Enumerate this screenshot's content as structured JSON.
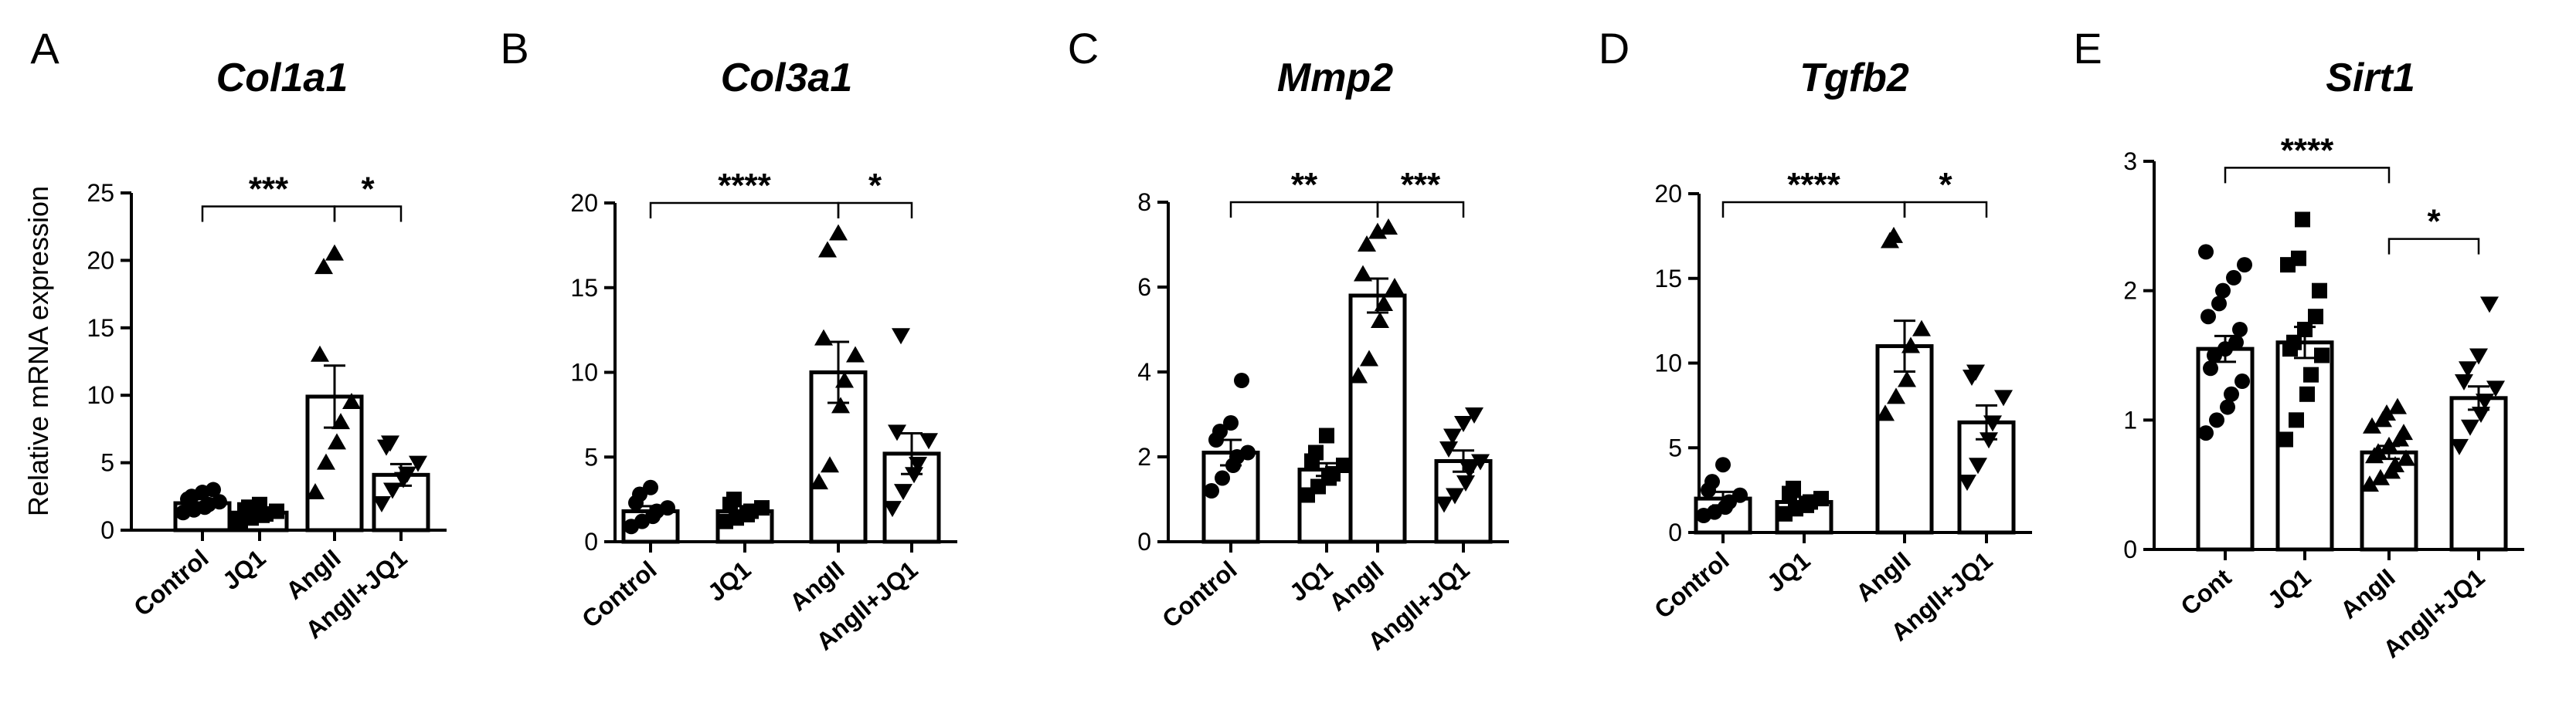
{
  "figure": {
    "ylabel": "Relative mRNA   expression",
    "chart_data": [
      {
        "panel": "A",
        "type": "bar",
        "title": "Col1a1",
        "categories": [
          "Control",
          "JQ1",
          "AngII",
          "AngII+JQ1"
        ],
        "ylim": [
          0,
          25
        ],
        "yticks": [
          0,
          5,
          10,
          15,
          20,
          25
        ],
        "values": [
          2.0,
          1.3,
          9.9,
          4.1
        ],
        "sem": [
          0.3,
          0.3,
          2.3,
          0.8
        ],
        "markers": [
          "circle",
          "square",
          "triangle-up",
          "triangle-down"
        ],
        "points": [
          [
            1.3,
            1.5,
            1.7,
            1.9,
            2.1,
            2.3,
            2.5,
            2.8,
            3.0
          ],
          [
            0.7,
            0.9,
            1.1,
            1.2,
            1.4,
            1.5,
            1.7,
            1.9
          ],
          [
            2.8,
            5.0,
            6.5,
            8.0,
            9.5,
            13.0,
            19.5,
            20.5
          ],
          [
            2.0,
            3.0,
            3.8,
            4.2,
            5.0,
            6.2,
            6.5
          ]
        ],
        "comparisons": [
          {
            "from": 0,
            "to": 2,
            "label": "***",
            "y": 24
          },
          {
            "from": 2,
            "to": 3,
            "label": "*",
            "y": 24
          }
        ]
      },
      {
        "panel": "B",
        "type": "bar",
        "title": "Col3a1",
        "categories": [
          "Control",
          "JQ1",
          "AngII",
          "AngII+JQ1"
        ],
        "ylim": [
          0,
          20
        ],
        "yticks": [
          0,
          5,
          10,
          15,
          20
        ],
        "values": [
          1.8,
          1.8,
          10.0,
          5.2
        ],
        "sem": [
          0.3,
          0.3,
          1.8,
          1.2
        ],
        "markers": [
          "circle",
          "square",
          "triangle-up",
          "triangle-down"
        ],
        "points": [
          [
            0.9,
            1.2,
            1.5,
            1.8,
            2.0,
            2.3,
            2.8,
            3.2
          ],
          [
            1.2,
            1.4,
            1.6,
            1.8,
            2.0,
            2.2,
            2.5
          ],
          [
            3.5,
            4.5,
            8.0,
            9.5,
            11.0,
            12.0,
            17.2,
            18.2
          ],
          [
            2.0,
            3.0,
            4.0,
            4.6,
            6.0,
            6.5,
            12.2
          ]
        ],
        "comparisons": [
          {
            "from": 0,
            "to": 2,
            "label": "****",
            "y": 20
          },
          {
            "from": 2,
            "to": 3,
            "label": "*",
            "y": 20
          }
        ]
      },
      {
        "panel": "C",
        "type": "bar",
        "title": "Mmp2",
        "categories": [
          "Control",
          "JQ1",
          "AngII",
          "AngII+JQ1"
        ],
        "ylim": [
          0,
          8
        ],
        "yticks": [
          0,
          2,
          4,
          6,
          8
        ],
        "values": [
          2.1,
          1.7,
          5.8,
          1.9
        ],
        "sem": [
          0.3,
          0.15,
          0.4,
          0.25
        ],
        "markers": [
          "circle",
          "square",
          "triangle-up",
          "triangle-down"
        ],
        "points": [
          [
            1.2,
            1.5,
            1.8,
            2.0,
            2.1,
            2.4,
            2.6,
            2.8,
            3.8
          ],
          [
            1.1,
            1.3,
            1.5,
            1.6,
            1.8,
            1.9,
            2.1,
            2.5
          ],
          [
            3.9,
            4.3,
            5.2,
            5.6,
            6.0,
            6.3,
            7.0,
            7.3,
            7.4
          ],
          [
            0.9,
            1.1,
            1.4,
            1.7,
            1.9,
            2.2,
            2.5,
            2.8,
            3.0
          ]
        ],
        "comparisons": [
          {
            "from": 0,
            "to": 2,
            "label": "**",
            "y": 8
          },
          {
            "from": 2,
            "to": 3,
            "label": "***",
            "y": 8
          }
        ]
      },
      {
        "panel": "D",
        "type": "bar",
        "title": "Tgfb2",
        "categories": [
          "Control",
          "JQ1",
          "AngII",
          "AngII+JQ1"
        ],
        "ylim": [
          0,
          20
        ],
        "yticks": [
          0,
          5,
          10,
          15,
          20
        ],
        "values": [
          2.0,
          1.8,
          11.0,
          6.5
        ],
        "sem": [
          0.4,
          0.3,
          1.5,
          1.0
        ],
        "markers": [
          "circle",
          "square",
          "triangle-up",
          "triangle-down"
        ],
        "points": [
          [
            1.0,
            1.2,
            1.5,
            1.8,
            2.2,
            2.5,
            3.0,
            4.0
          ],
          [
            1.1,
            1.4,
            1.6,
            1.8,
            2.0,
            2.3,
            2.6
          ],
          [
            7.0,
            8.0,
            9.0,
            11.0,
            12.0,
            17.2,
            17.5
          ],
          [
            3.0,
            4.0,
            5.5,
            6.5,
            8.0,
            9.2,
            9.5
          ]
        ],
        "comparisons": [
          {
            "from": 0,
            "to": 2,
            "label": "****",
            "y": 19.5
          },
          {
            "from": 2,
            "to": 3,
            "label": "*",
            "y": 19.5
          }
        ]
      },
      {
        "panel": "E",
        "type": "bar",
        "title": "Sirt1",
        "categories": [
          "Cont",
          "JQ1",
          "AngII",
          "AngII+JQ1"
        ],
        "ylim": [
          0,
          3
        ],
        "yticks": [
          0,
          1,
          2,
          3
        ],
        "values": [
          1.55,
          1.6,
          0.75,
          1.17
        ],
        "sem": [
          0.1,
          0.12,
          0.05,
          0.09
        ],
        "markers": [
          "circle",
          "square",
          "triangle-up",
          "triangle-down"
        ],
        "points": [
          [
            0.9,
            1.0,
            1.1,
            1.2,
            1.3,
            1.4,
            1.5,
            1.55,
            1.6,
            1.7,
            1.8,
            1.9,
            2.0,
            2.1,
            2.2,
            2.3
          ],
          [
            0.85,
            1.0,
            1.2,
            1.35,
            1.5,
            1.55,
            1.6,
            1.7,
            1.8,
            2.0,
            2.2,
            2.25,
            2.55
          ],
          [
            0.5,
            0.55,
            0.6,
            0.65,
            0.7,
            0.72,
            0.75,
            0.8,
            0.85,
            0.9,
            0.95,
            1.0,
            1.05,
            1.1
          ],
          [
            0.8,
            0.95,
            1.05,
            1.15,
            1.25,
            1.3,
            1.4,
            1.5,
            1.9
          ]
        ],
        "comparisons": [
          {
            "from": 0,
            "to": 2,
            "label": "****",
            "y": 2.95
          },
          {
            "from": 2,
            "to": 3,
            "label": "*",
            "y": 2.4
          }
        ]
      }
    ]
  }
}
